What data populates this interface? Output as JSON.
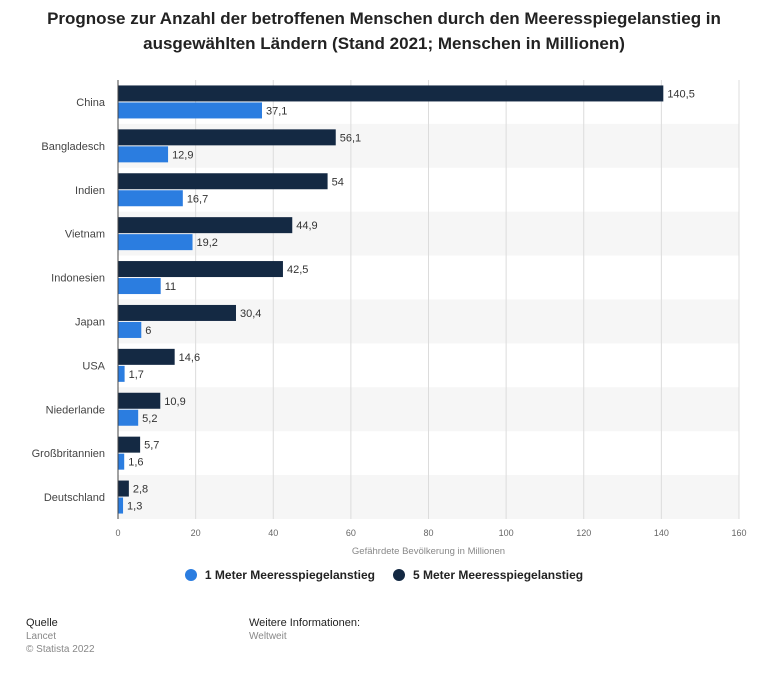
{
  "chart_data": {
    "type": "bar",
    "orientation": "horizontal",
    "title": "Prognose zur Anzahl der betroffenen Menschen durch den Meeresspiegelanstieg in ausgewählten Ländern (Stand 2021; Menschen in Millionen)",
    "categories": [
      "China",
      "Bangladesch",
      "Indien",
      "Vietnam",
      "Indonesien",
      "Japan",
      "USA",
      "Niederlande",
      "Großbritannien",
      "Deutschland"
    ],
    "series": [
      {
        "name": "5 Meter Meeresspiegelanstieg",
        "color": "#142943",
        "values": [
          140.5,
          56.1,
          54,
          44.9,
          42.5,
          30.4,
          14.6,
          10.9,
          5.7,
          2.8
        ],
        "labels": [
          "140,5",
          "56,1",
          "54",
          "44,9",
          "42,5",
          "30,4",
          "14,6",
          "10,9",
          "5,7",
          "2,8"
        ]
      },
      {
        "name": "1 Meter Meeresspiegelanstieg",
        "color": "#2b7de0",
        "values": [
          37.1,
          12.9,
          16.7,
          19.2,
          11,
          6,
          1.7,
          5.2,
          1.6,
          1.3
        ],
        "labels": [
          "37,1",
          "12,9",
          "16,7",
          "19,2",
          "11",
          "6",
          "1,7",
          "5,2",
          "1,6",
          "1,3"
        ]
      }
    ],
    "xlabel": "Gefährdete Bevölkerung in Millionen",
    "xlim": [
      0,
      160
    ],
    "xticks": [
      0,
      20,
      40,
      60,
      80,
      100,
      120,
      140,
      160
    ],
    "legend": [
      {
        "name": "1 Meter Meeresspiegelanstieg",
        "color": "#2b7de0"
      },
      {
        "name": "5 Meter Meeresspiegelanstieg",
        "color": "#142943"
      }
    ],
    "grid": true,
    "legend_position": "bottom"
  },
  "footer": {
    "source_heading": "Quelle",
    "source_lines": [
      "Lancet",
      "© Statista 2022"
    ],
    "info_heading": "Weitere Informationen:",
    "info_lines": [
      "Weltweit"
    ]
  }
}
